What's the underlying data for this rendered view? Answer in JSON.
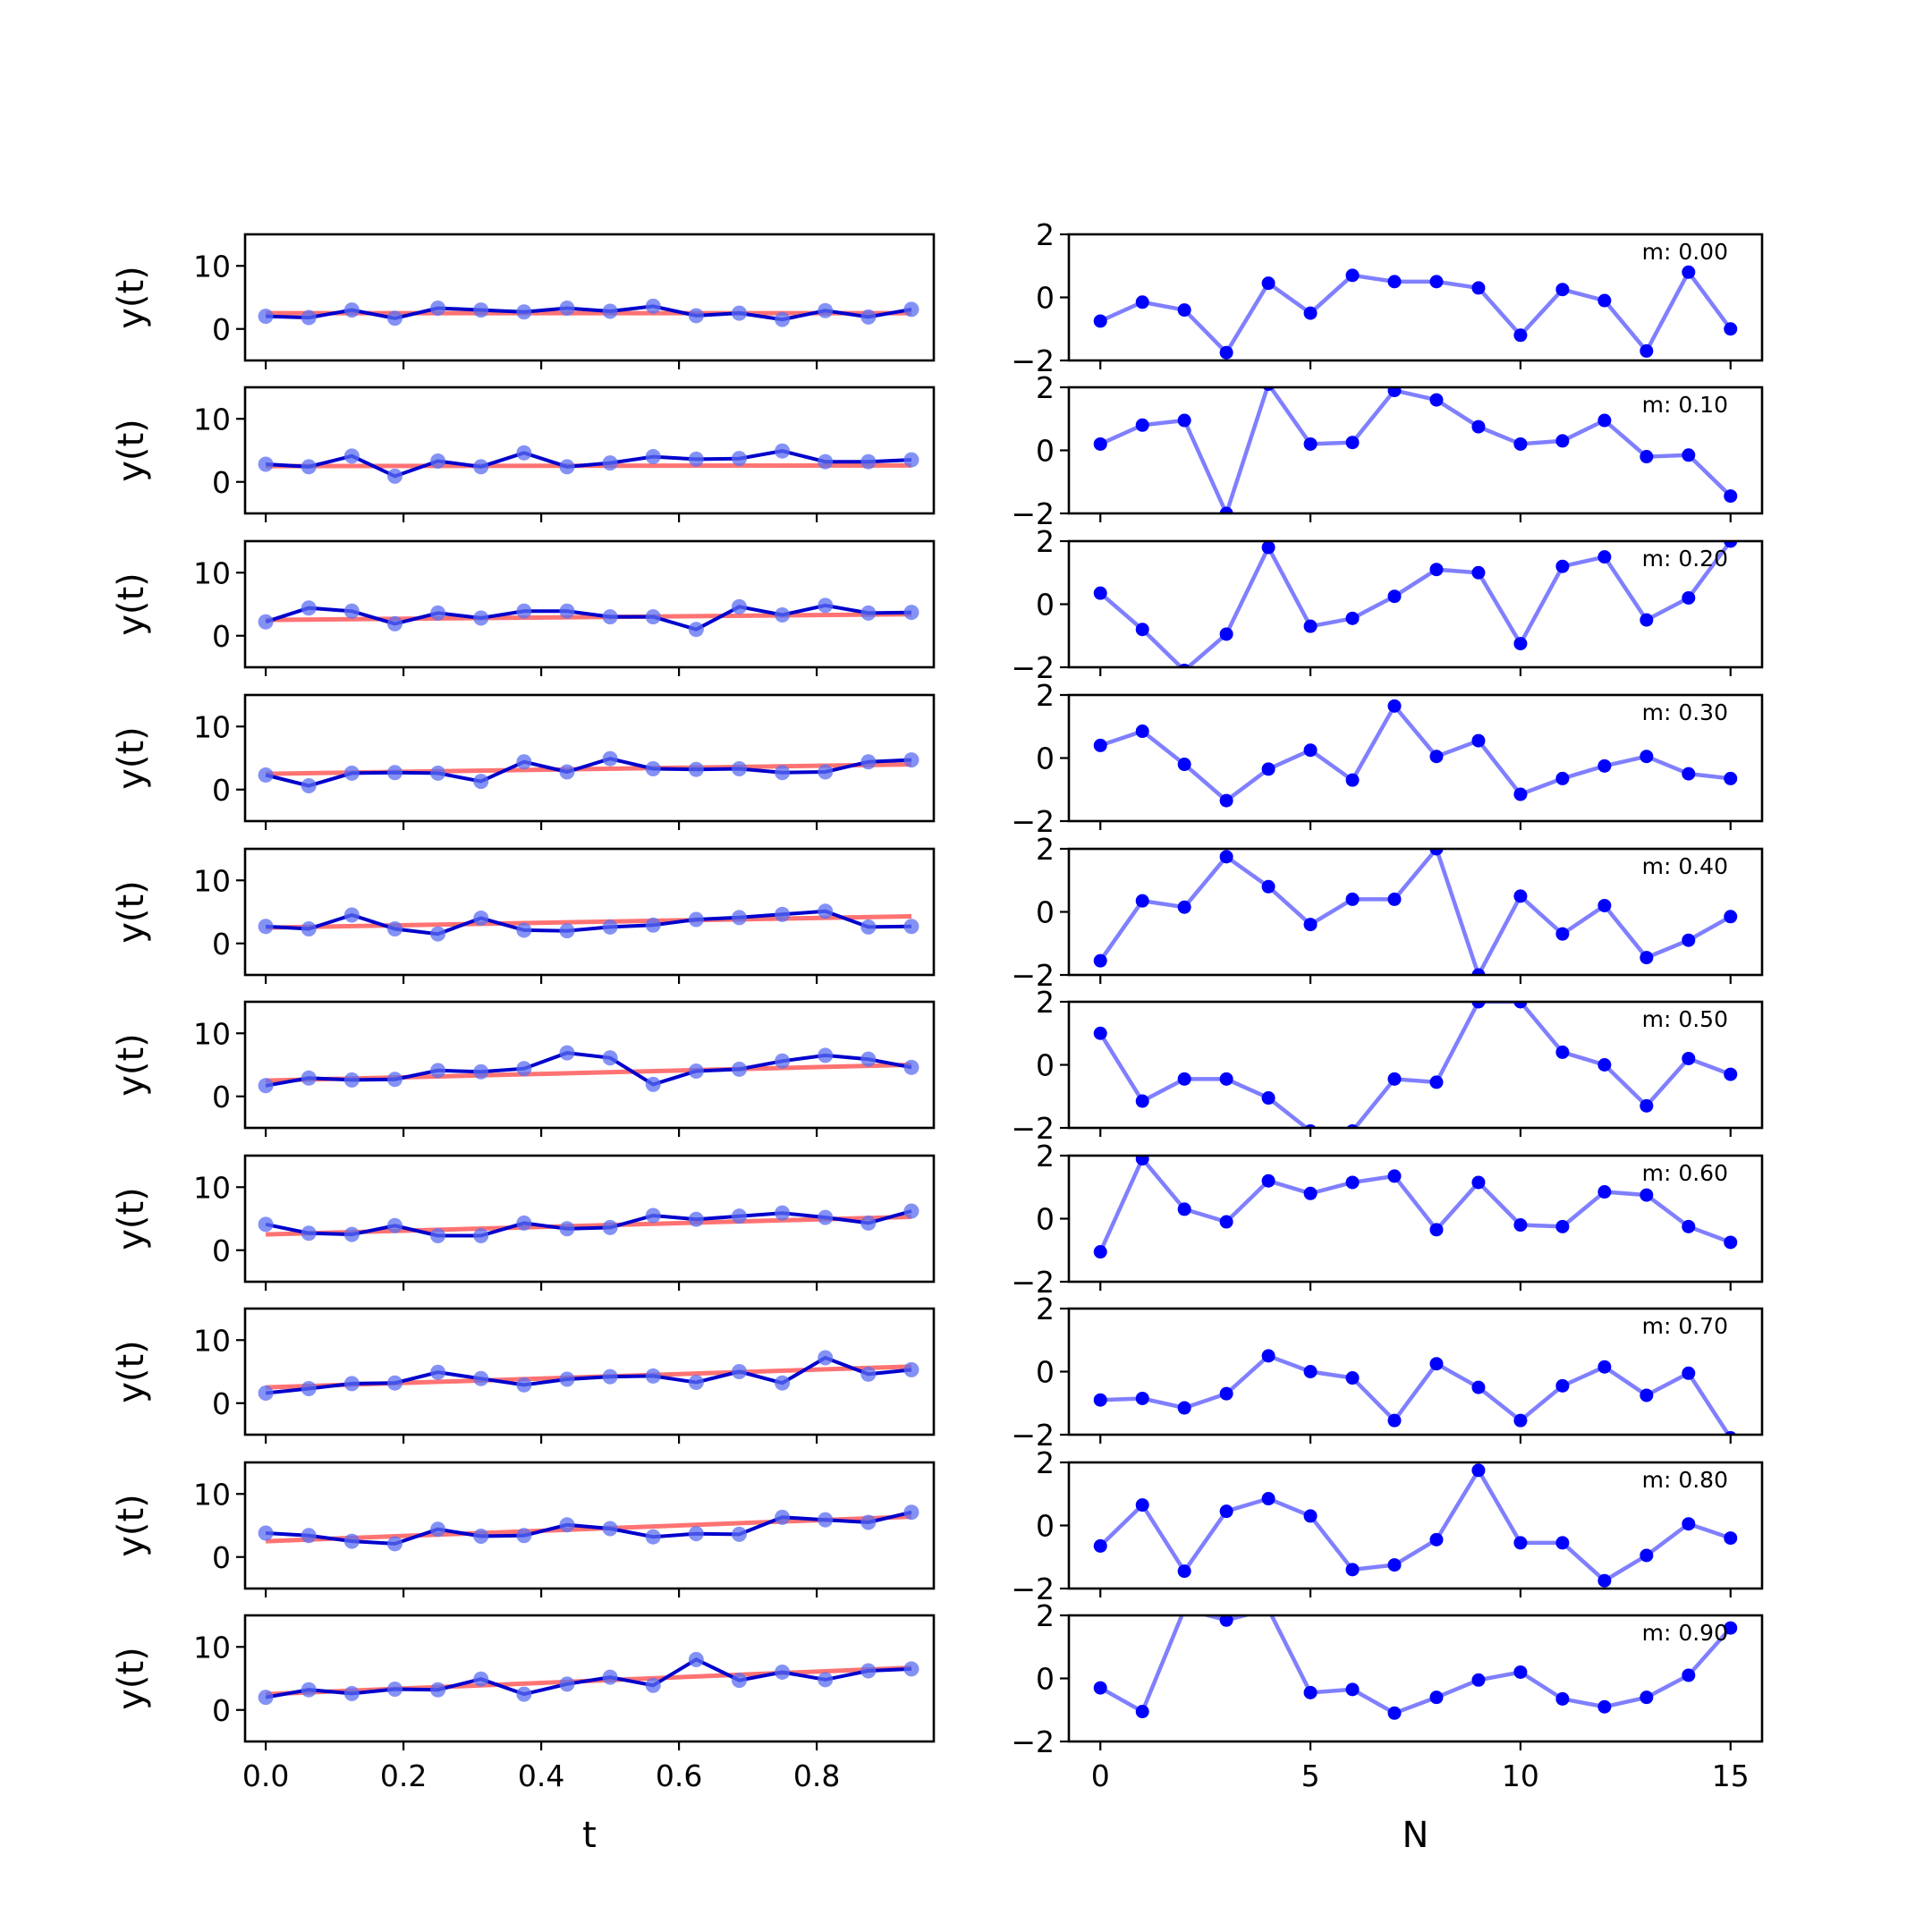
{
  "chart_data": [
    {
      "type": "line",
      "panel": "left-column",
      "xlabel": "t",
      "ylabel": "y(t)",
      "xlim": [
        -0.03,
        0.97
      ],
      "ylim": [
        -5,
        15
      ],
      "xticks": [
        0.0,
        0.2,
        0.4,
        0.6,
        0.8
      ],
      "xtick_labels": [
        "0.0",
        "0.2",
        "0.4",
        "0.6",
        "0.8"
      ],
      "yticks": [
        0,
        10
      ],
      "ytick_labels": [
        "0",
        "10"
      ],
      "x": [
        0.0,
        0.0625,
        0.125,
        0.1875,
        0.25,
        0.3125,
        0.375,
        0.4375,
        0.5,
        0.5625,
        0.625,
        0.6875,
        0.75,
        0.8125,
        0.875,
        0.9375
      ],
      "rows": [
        {
          "m": 0.0,
          "fit": [
            2.5,
            2.5
          ],
          "y": [
            2.0,
            1.8,
            3.0,
            1.7,
            3.3,
            3.0,
            2.7,
            3.3,
            2.8,
            3.6,
            2.1,
            2.5,
            1.5,
            2.9,
            1.9,
            3.1
          ]
        },
        {
          "m": 0.1,
          "fit": [
            2.5,
            2.6
          ],
          "y": [
            2.8,
            2.4,
            4.1,
            0.9,
            3.3,
            2.4,
            4.6,
            2.4,
            3.0,
            4.0,
            3.6,
            3.7,
            4.9,
            3.2,
            3.2,
            3.5
          ]
        },
        {
          "m": 0.2,
          "fit": [
            2.5,
            3.4
          ],
          "y": [
            2.2,
            4.4,
            3.9,
            1.9,
            3.6,
            2.8,
            3.9,
            3.9,
            3.0,
            3.0,
            1.0,
            4.6,
            3.3,
            4.8,
            3.6,
            3.7
          ]
        },
        {
          "m": 0.3,
          "fit": [
            2.5,
            4.0
          ],
          "y": [
            2.3,
            0.6,
            2.6,
            2.7,
            2.6,
            1.3,
            4.4,
            2.8,
            4.9,
            3.3,
            3.2,
            3.3,
            2.7,
            2.8,
            4.4,
            4.7
          ]
        },
        {
          "m": 0.4,
          "fit": [
            2.5,
            4.3
          ],
          "y": [
            2.7,
            2.3,
            4.5,
            2.3,
            1.5,
            4.0,
            2.1,
            2.0,
            2.6,
            2.9,
            3.8,
            4.1,
            4.6,
            5.1,
            2.6,
            2.7
          ]
        },
        {
          "m": 0.5,
          "fit": [
            2.5,
            5.0
          ],
          "y": [
            1.7,
            2.9,
            2.6,
            2.7,
            4.1,
            3.9,
            4.4,
            6.9,
            6.1,
            1.9,
            4.0,
            4.3,
            5.6,
            6.5,
            5.9,
            4.6
          ]
        },
        {
          "m": 0.6,
          "fit": [
            2.5,
            5.3
          ],
          "y": [
            4.1,
            2.7,
            2.5,
            3.9,
            2.3,
            2.3,
            4.3,
            3.4,
            3.6,
            5.5,
            4.9,
            5.4,
            5.9,
            5.2,
            4.3,
            6.2
          ]
        },
        {
          "m": 0.7,
          "fit": [
            2.5,
            5.8
          ],
          "y": [
            1.6,
            2.3,
            3.1,
            3.2,
            4.9,
            3.9,
            2.9,
            3.8,
            4.2,
            4.3,
            3.3,
            5.0,
            3.2,
            7.2,
            4.6,
            5.3
          ]
        },
        {
          "m": 0.8,
          "fit": [
            2.5,
            6.4
          ],
          "y": [
            3.8,
            3.4,
            2.5,
            2.1,
            4.4,
            3.3,
            3.4,
            5.1,
            4.5,
            3.2,
            3.7,
            3.6,
            6.3,
            5.9,
            5.5,
            7.1
          ]
        },
        {
          "m": 0.9,
          "fit": [
            2.5,
            6.7
          ],
          "y": [
            2.0,
            3.2,
            2.6,
            3.3,
            3.2,
            4.9,
            2.5,
            4.1,
            5.2,
            3.9,
            8.0,
            4.7,
            6.0,
            4.8,
            6.2,
            6.5
          ]
        }
      ],
      "series": [
        {
          "color": "#0000cc"
        },
        {
          "color": "#ff5a5a"
        }
      ]
    },
    {
      "type": "line",
      "panel": "right-column",
      "xlabel": "N",
      "ylim": [
        -2,
        2
      ],
      "xlim": [
        -0.75,
        15.75
      ],
      "xticks": [
        0,
        5,
        10,
        15
      ],
      "xtick_labels": [
        "0",
        "5",
        "10",
        "15"
      ],
      "yticks": [
        -2,
        0,
        2
      ],
      "ytick_labels": [
        "−2",
        "0",
        "2"
      ],
      "x": [
        0,
        1,
        2,
        3,
        4,
        5,
        6,
        7,
        8,
        9,
        10,
        11,
        12,
        13,
        14,
        15
      ],
      "rows": [
        {
          "label": "m: 0.00",
          "values": [
            -0.75,
            -0.15,
            -0.4,
            -1.75,
            0.45,
            -0.5,
            0.7,
            0.5,
            0.5,
            0.3,
            -1.2,
            0.25,
            -0.1,
            -1.7,
            0.8,
            -1.0
          ]
        },
        {
          "label": "m: 0.10",
          "values": [
            0.2,
            0.8,
            0.95,
            -2.0,
            2.1,
            0.2,
            0.25,
            1.9,
            1.6,
            0.75,
            0.2,
            0.3,
            0.95,
            -0.2,
            -0.15,
            -1.45
          ]
        },
        {
          "label": "m: 0.20",
          "values": [
            0.35,
            -0.8,
            -2.1,
            -0.95,
            1.8,
            -0.7,
            -0.45,
            0.25,
            1.1,
            1.0,
            -1.25,
            1.2,
            1.5,
            -0.5,
            0.2,
            2.0
          ]
        },
        {
          "label": "m: 0.30",
          "values": [
            0.4,
            0.85,
            -0.2,
            -1.35,
            -0.35,
            0.25,
            -0.7,
            1.65,
            0.05,
            0.55,
            -1.15,
            -0.65,
            -0.25,
            0.05,
            -0.5,
            -0.65
          ]
        },
        {
          "label": "m: 0.40",
          "values": [
            -1.55,
            0.35,
            0.15,
            1.75,
            0.8,
            -0.4,
            0.4,
            0.4,
            2.0,
            -2.0,
            0.5,
            -0.7,
            0.2,
            -1.45,
            -0.9,
            -0.15
          ]
        },
        {
          "label": "m: 0.50",
          "values": [
            1.0,
            -1.15,
            -0.45,
            -0.45,
            -1.05,
            -2.1,
            -2.1,
            -0.45,
            -0.55,
            2.0,
            2.0,
            0.4,
            0.0,
            -1.3,
            0.2,
            -0.3
          ]
        },
        {
          "label": "m: 0.60",
          "values": [
            -1.05,
            1.9,
            0.3,
            -0.1,
            1.2,
            0.8,
            1.15,
            1.35,
            -0.35,
            1.15,
            -0.2,
            -0.25,
            0.85,
            0.75,
            -0.25,
            -0.75
          ]
        },
        {
          "label": "m: 0.70",
          "values": [
            -0.9,
            -0.85,
            -1.15,
            -0.7,
            0.5,
            0.0,
            -0.2,
            -1.55,
            0.25,
            -0.5,
            -1.55,
            -0.45,
            0.15,
            -0.75,
            -0.05,
            -2.1
          ]
        },
        {
          "label": "m: 0.80",
          "values": [
            -0.65,
            0.65,
            -1.45,
            0.45,
            0.85,
            0.3,
            -1.4,
            -1.25,
            -0.45,
            1.75,
            -0.55,
            -0.55,
            -1.75,
            -0.95,
            0.05,
            -0.4
          ]
        },
        {
          "label": "m: 0.90",
          "values": [
            -0.3,
            -1.05,
            2.2,
            1.85,
            2.2,
            -0.45,
            -0.35,
            -1.1,
            -0.6,
            -0.05,
            0.2,
            -0.65,
            -0.9,
            -0.6,
            0.1,
            1.6
          ]
        }
      ],
      "series": [
        {
          "color": "#0000ff"
        }
      ]
    }
  ]
}
